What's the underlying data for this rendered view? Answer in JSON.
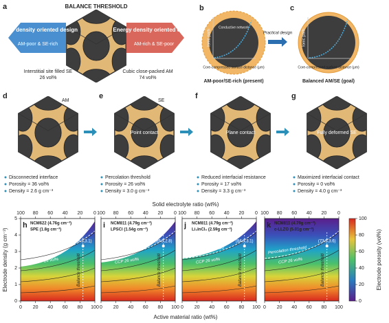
{
  "panel_a": {
    "label": "a",
    "title": "BALANCE THRESHOLD",
    "left": {
      "title": "Power density oriented design",
      "subtitle": "AM-poor & SE-rich"
    },
    "right": {
      "title": "Energy density oriented design",
      "subtitle": "AM-rich & SE-poor"
    },
    "notes": [
      {
        "text": "Interstitial site filled SE",
        "value": "26 vol%"
      },
      {
        "text": "Cubic close-packed AM",
        "value": "74 vol%"
      }
    ]
  },
  "panel_b": {
    "label": "b",
    "y_label": "Ionic path",
    "legend": "Conductive network",
    "x_label": "Core-compressed surface distance (μm)",
    "caption": "AM-poor/SE-rich (present)"
  },
  "arrow_text": "Practical design",
  "panel_c": {
    "label": "c",
    "y_label": "Ionic path",
    "x_label": "Core-compressed surface distance (μm)",
    "caption": "Balanced AM/SE (goal)"
  },
  "states": [
    {
      "label": "d",
      "tag": "AM",
      "bullets": [
        "Disconnected interface",
        "Porosity = 36 vol%",
        "Density = 2.6 g cm⁻³"
      ]
    },
    {
      "label": "e",
      "tag": "SE",
      "contact": "Point contact",
      "bullets": [
        "Percolation threshold",
        "Porosity = 26 vol%",
        "Density = 3.0 g cm⁻³"
      ]
    },
    {
      "label": "f",
      "contact": "Plane contact",
      "bullets": [
        "Reduced interfacial resistance",
        "Porosity = 17 vol%",
        "Density = 3.3 g cm⁻³"
      ]
    },
    {
      "label": "g",
      "contact": "Fully deformed SE",
      "bullets": [
        "Maximized interfacial contact",
        "Porosity = 0 vol%",
        "Density = 4.0 g cm⁻³"
      ]
    }
  ],
  "maps": {
    "top_label": "Solid electrolyte ratio (wt%)",
    "x_label": "Active material ratio (wt%)",
    "y_label": "Electrode density (g cm⁻³)",
    "colorbar_label": "Electrode porosity (vol%)",
    "xticks": [
      0,
      20,
      40,
      60,
      80,
      100
    ],
    "top_ticks": [
      100,
      80,
      60,
      40,
      20,
      0
    ],
    "yticks": [
      0,
      1,
      2,
      3,
      4,
      5
    ],
    "cticks": [
      0,
      20,
      40,
      60,
      80,
      100
    ],
    "panels": [
      {
        "label": "h",
        "materials": [
          "NCM622 (4.76g cm⁻³)",
          "SPE (1.8g cm⁻³)"
        ],
        "point": "(88.3,3.1)",
        "percolation": "Percolation threshold",
        "ccp": "CCP 26 vol%",
        "balance": "Balance threshold"
      },
      {
        "label": "i",
        "materials": [
          "NCM811 (4.79g cm⁻³)",
          "LPSCl (1.54g cm⁻³)"
        ],
        "point": "(89.5,2.8)",
        "percolation": "Percolation threshold",
        "ccp": "CCP 26 vol%",
        "balance": "Balance threshold"
      },
      {
        "label": "j",
        "materials": [
          "NCM811 (4.79g cm⁻³)",
          "Li₃InCl₆ (2.59g cm⁻³)"
        ],
        "point": "(84.9,3.1)",
        "percolation": "Percolation threshold",
        "ccp": "CCP 26 vol%",
        "balance": "Balance threshold"
      },
      {
        "label": "k",
        "materials": [
          "NCM811 (4.79g cm⁻³)",
          "c-LLZO (5.01g cm⁻³)"
        ],
        "point": "(73.5,3.6)",
        "percolation": "Percolation threshold",
        "ccp": "CCP 26 vol%",
        "balance": "Balance threshold"
      }
    ]
  }
}
